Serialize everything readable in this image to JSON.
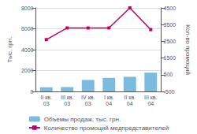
{
  "chart_data": {
    "type": "bar",
    "categories": [
      "II кв.\n03",
      "III кв.\n03",
      "IV кв.\n03",
      "I кв.\n04",
      "II кв.\n04",
      "III кв.\n04"
    ],
    "series": [
      {
        "name": "Объемы продаж, тыс. грн.",
        "type": "bar",
        "color": "#7abbe0",
        "values": [
          400,
          420,
          1100,
          1300,
          1400,
          1800
        ]
      },
      {
        "name": "Количество промоций медпредставителей",
        "type": "line",
        "color": "#c0006a",
        "marker": "square",
        "axis": "y2",
        "values": [
          2600,
          3300,
          3300,
          3300,
          4500,
          3200
        ]
      }
    ],
    "ylabel": "Тыс. грн.",
    "y2label": "Кол-во промоций",
    "ylim": [
      0,
      8000
    ],
    "yticks": [
      0,
      2000,
      4000,
      6000,
      8000
    ],
    "y2lim": [
      -500,
      4500
    ],
    "y2ticks": [
      -500,
      500,
      1500,
      2500,
      3500,
      4500
    ],
    "grid": true,
    "legend": "bottom"
  }
}
